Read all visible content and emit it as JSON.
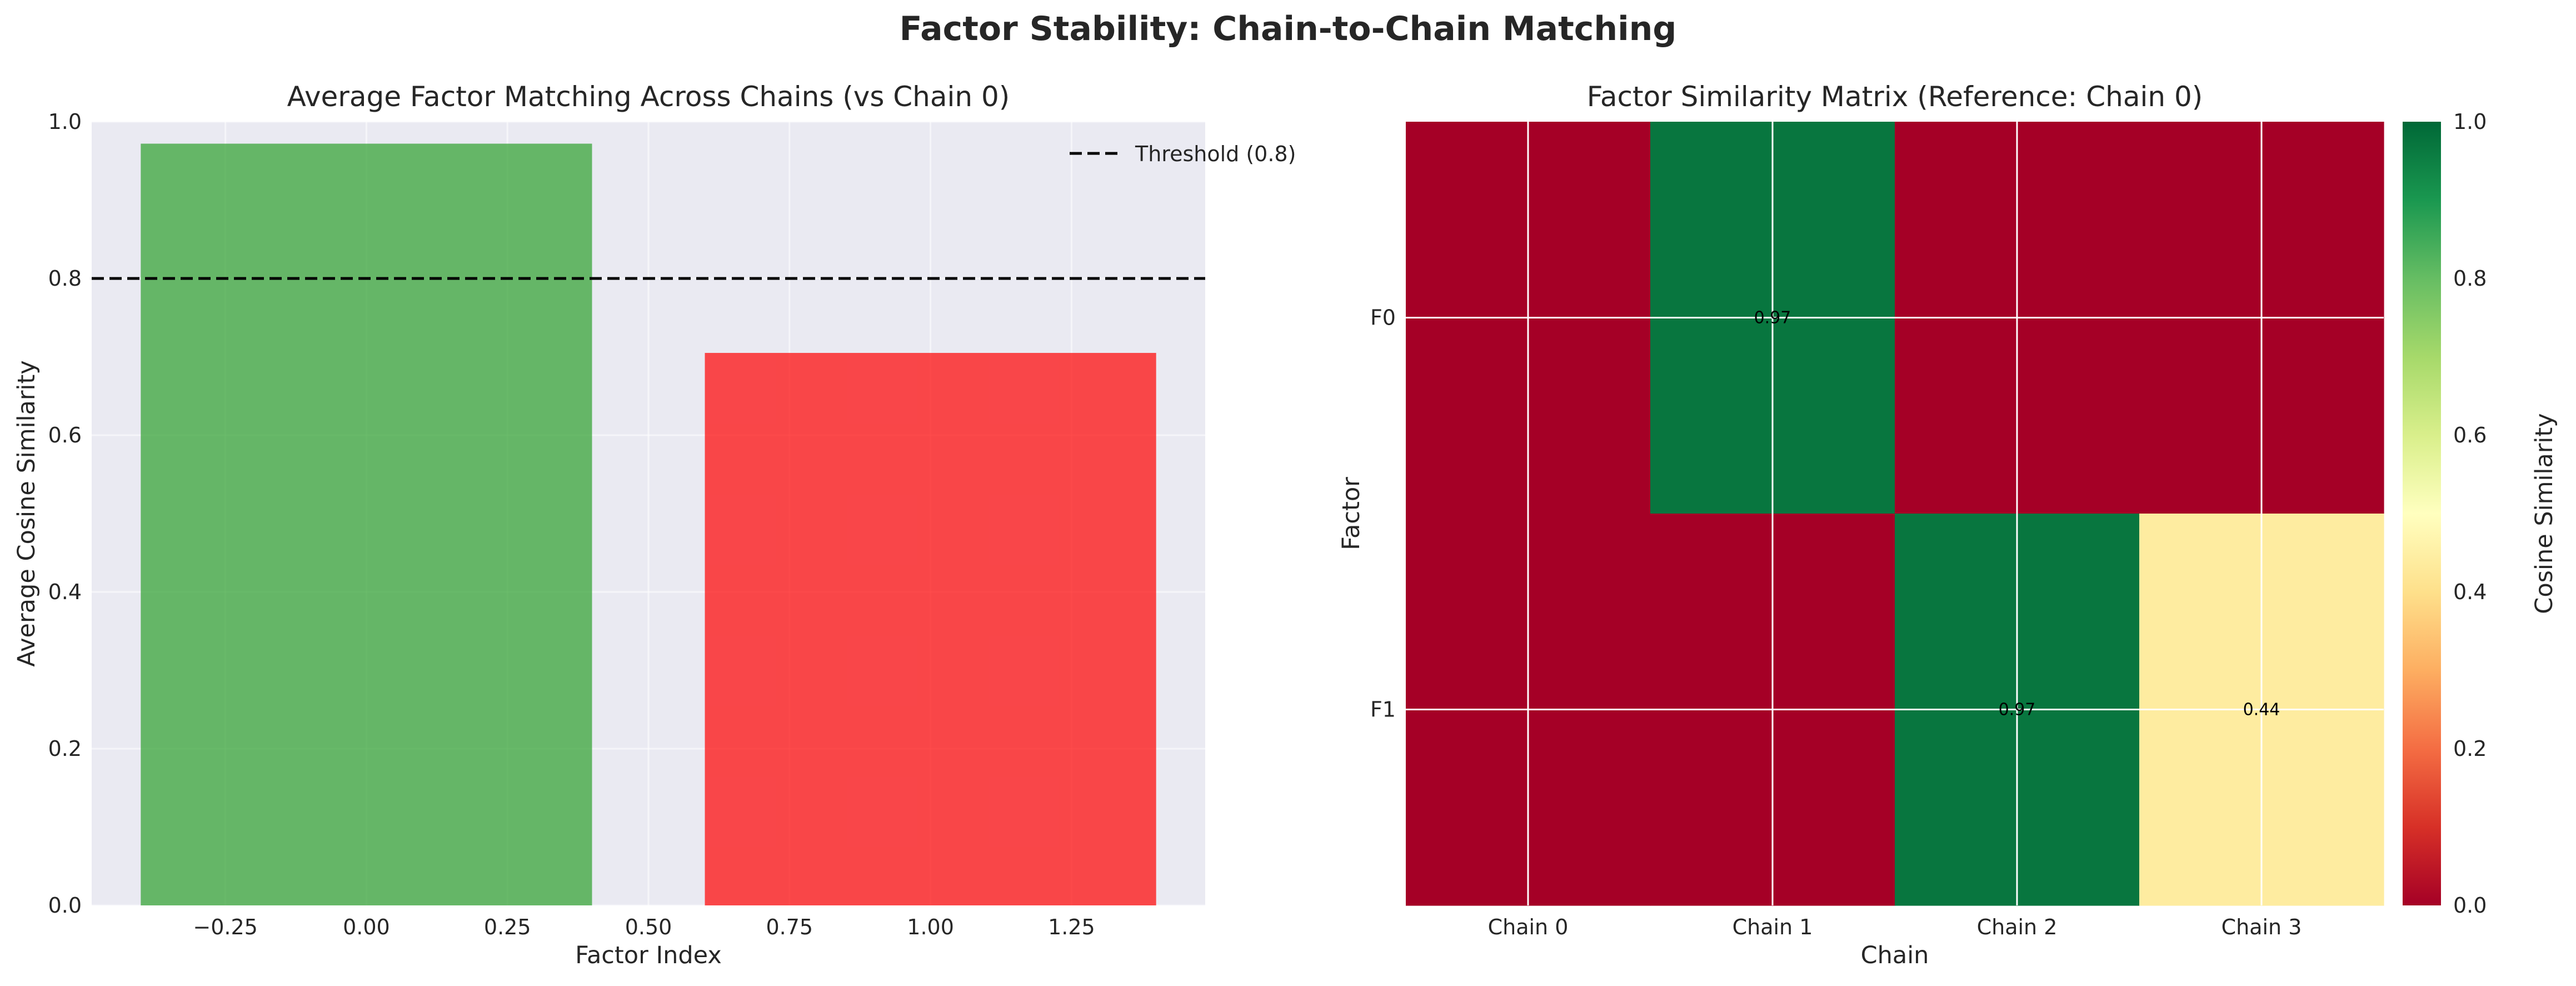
{
  "figure_title": "Factor Stability: Chain-to-Chain Matching",
  "chart_data": [
    {
      "type": "bar",
      "title": "Average Factor Matching Across Chains (vs Chain 0)",
      "xlabel": "Factor Index",
      "ylabel": "Average Cosine Similarity",
      "x": [
        0,
        1
      ],
      "values": [
        0.972,
        0.705
      ],
      "bar_colors": [
        "#2ca02c",
        "#ff0000"
      ],
      "bar_width": 0.8,
      "xlim": [
        -0.487,
        1.487
      ],
      "ylim": [
        0,
        1
      ],
      "xticks": [
        -0.25,
        0.0,
        0.25,
        0.5,
        0.75,
        1.0,
        1.25
      ],
      "xtick_labels": [
        "−0.25",
        "0.00",
        "0.25",
        "0.50",
        "0.75",
        "1.00",
        "1.25"
      ],
      "yticks": [
        0.0,
        0.2,
        0.4,
        0.6,
        0.8,
        1.0
      ],
      "ytick_labels": [
        "0.0",
        "0.2",
        "0.4",
        "0.6",
        "0.8",
        "1.0"
      ],
      "threshold": {
        "value": 0.8,
        "label": "Threshold (0.8)",
        "color": "#000000"
      },
      "legend_position": "top-right",
      "grid": true,
      "background": "#eaeaf2"
    },
    {
      "type": "heatmap",
      "title": "Factor Similarity Matrix (Reference: Chain 0)",
      "xlabel": "Chain",
      "ylabel": "Factor",
      "x_categories": [
        "Chain 0",
        "Chain 1",
        "Chain 2",
        "Chain 3"
      ],
      "y_categories": [
        "F0",
        "F1"
      ],
      "values": [
        [
          0.0,
          0.97,
          0.0,
          0.0
        ],
        [
          0.0,
          0.0,
          0.97,
          0.44
        ]
      ],
      "cell_labels": [
        {
          "row": 0,
          "col": 1,
          "text": "0.97"
        },
        {
          "row": 1,
          "col": 2,
          "text": "0.97"
        },
        {
          "row": 1,
          "col": 3,
          "text": "0.44"
        }
      ],
      "colormap": "RdYlGn",
      "colorbar_label": "Cosine Similarity",
      "colorbar_ticks": [
        0.0,
        0.2,
        0.4,
        0.6,
        0.8,
        1.0
      ],
      "colorbar_tick_labels": [
        "0.0",
        "0.2",
        "0.4",
        "0.6",
        "0.8",
        "1.0"
      ],
      "vmin": 0,
      "vmax": 1
    }
  ]
}
